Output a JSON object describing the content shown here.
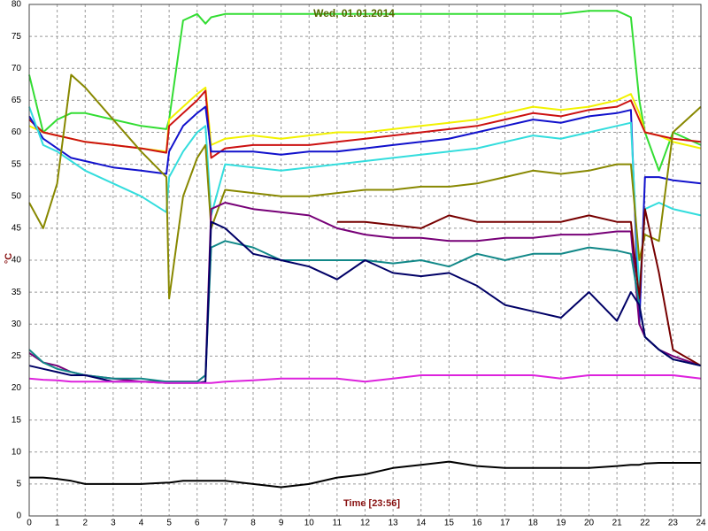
{
  "chart_data": {
    "type": "line",
    "title": "Wed, 01.01.2014",
    "xlabel": "Time [23:56]",
    "ylabel": "°C",
    "x": [
      0,
      0.5,
      1,
      1.5,
      2,
      3,
      4,
      4.9,
      5,
      5.5,
      6,
      6.3,
      6.5,
      7,
      8,
      9,
      10,
      11,
      12,
      13,
      14,
      15,
      16,
      17,
      18,
      19,
      20,
      21,
      21.5,
      21.8,
      22,
      22.5,
      23,
      24
    ],
    "xlim": [
      0,
      24
    ],
    "xticks": [
      0,
      1,
      2,
      3,
      4,
      5,
      6,
      7,
      8,
      9,
      10,
      11,
      12,
      13,
      14,
      15,
      16,
      17,
      18,
      19,
      20,
      21,
      22,
      23,
      24
    ],
    "ylim": [
      0,
      80
    ],
    "yticks": [
      0,
      5,
      10,
      15,
      20,
      25,
      30,
      35,
      40,
      45,
      50,
      55,
      60,
      65,
      70,
      75,
      80
    ],
    "grid": true,
    "series": [
      {
        "color": "#33dd33",
        "values": [
          69,
          60,
          62,
          63,
          63,
          62,
          61,
          60.5,
          62,
          77.5,
          78.5,
          77,
          78,
          78.5,
          78.5,
          78.5,
          78.5,
          78.5,
          78.5,
          78.5,
          78.5,
          78.5,
          78.5,
          78.5,
          78.5,
          78.5,
          79,
          79,
          78,
          65,
          60,
          54,
          60,
          58
        ]
      },
      {
        "color": "#f2f200",
        "values": [
          61,
          60,
          59.5,
          59,
          58.5,
          58,
          57.5,
          57,
          62,
          64,
          66,
          67,
          58,
          59,
          59.5,
          59,
          59.5,
          60,
          60,
          60.5,
          61,
          61.5,
          62,
          63,
          64,
          63.5,
          64,
          65,
          66,
          63,
          60,
          59.5,
          58.5,
          57.5
        ]
      },
      {
        "color": "#cc1111",
        "values": [
          62,
          60,
          59.5,
          59,
          58.5,
          58,
          57.5,
          56.8,
          61,
          63,
          65,
          66.5,
          56,
          57.5,
          58,
          58,
          58,
          58.5,
          59,
          59.5,
          60,
          60.5,
          61,
          62,
          63,
          62.5,
          63.5,
          64,
          65,
          62,
          60,
          59.5,
          59,
          58.5
        ]
      },
      {
        "color": "#1111cc",
        "values": [
          62.5,
          59,
          57.5,
          56,
          55.5,
          54.5,
          54,
          53.5,
          57,
          61,
          63,
          64,
          57,
          57,
          57,
          56.5,
          57,
          57,
          57.5,
          58,
          58.5,
          59,
          60,
          61,
          62,
          61.5,
          62.5,
          63,
          63.5,
          30,
          53,
          53,
          52.5,
          52
        ]
      },
      {
        "color": "#33dddd",
        "values": [
          64,
          58,
          57,
          55.5,
          54,
          52,
          50,
          47.5,
          53,
          57,
          60,
          61,
          47,
          55,
          54.5,
          54,
          54.5,
          55,
          55.5,
          56,
          56.5,
          57,
          57.5,
          58.5,
          59.5,
          59,
          60,
          61,
          61.5,
          35,
          48,
          49,
          48,
          47
        ]
      },
      {
        "color": "#888800",
        "values": [
          49,
          45,
          52,
          69,
          67,
          62,
          57,
          53,
          34,
          50,
          56,
          58,
          45,
          51,
          50.5,
          50,
          50,
          50.5,
          51,
          51,
          51.5,
          51.5,
          52,
          53,
          54,
          53.5,
          54,
          55,
          55,
          40,
          44,
          43,
          60,
          64
        ]
      },
      {
        "color": "#770077",
        "values": [
          25.5,
          24,
          23.5,
          22.5,
          22,
          21.5,
          21,
          21,
          21,
          21,
          21,
          22,
          48,
          49,
          48,
          47.5,
          47,
          45,
          44,
          43.5,
          43.5,
          43,
          43,
          43.5,
          43.5,
          44,
          44,
          44.5,
          44.5,
          30,
          28,
          26,
          25,
          23.5
        ]
      },
      {
        "color": "#770000",
        "values": [
          null,
          null,
          null,
          null,
          null,
          null,
          null,
          null,
          null,
          null,
          null,
          null,
          null,
          null,
          null,
          null,
          null,
          46,
          46,
          45.5,
          45,
          47,
          46,
          46,
          46,
          46,
          47,
          46,
          46,
          34,
          48,
          38,
          26,
          23.5
        ]
      },
      {
        "color": "#118888",
        "values": [
          26,
          24,
          23,
          22.5,
          22,
          21.5,
          21.5,
          21,
          21,
          21,
          21,
          22,
          42,
          43,
          42,
          40,
          40,
          40,
          40,
          39.5,
          40,
          39,
          41,
          40,
          41,
          41,
          42,
          41.5,
          41,
          33,
          28,
          26,
          24.5,
          23.5
        ]
      },
      {
        "color": "#000066",
        "values": [
          23.5,
          23,
          22.5,
          22,
          22,
          21,
          21,
          20.8,
          20.8,
          20.8,
          20.8,
          21,
          46,
          45,
          41,
          40,
          39,
          37,
          40,
          38,
          37.5,
          38,
          36,
          33,
          32,
          31,
          35,
          30.5,
          35,
          33,
          28,
          26,
          24.5,
          23.5
        ]
      },
      {
        "color": "#dd22dd",
        "values": [
          21.5,
          21.3,
          21.2,
          21,
          21,
          21,
          21,
          20.8,
          20.8,
          20.8,
          20.8,
          20.8,
          20.8,
          21,
          21.2,
          21.5,
          21.5,
          21.5,
          21,
          21.5,
          22,
          22,
          22,
          22,
          22,
          21.5,
          22,
          22,
          22,
          22,
          22,
          22,
          22,
          21.5
        ]
      },
      {
        "color": "#000000",
        "values": [
          6,
          6,
          5.8,
          5.5,
          5,
          5,
          5,
          5.2,
          5.2,
          5.5,
          5.5,
          5.5,
          5.5,
          5.5,
          5,
          4.5,
          5,
          6,
          6.5,
          7.5,
          8,
          8.5,
          7.8,
          7.5,
          7.5,
          7.5,
          7.5,
          7.8,
          8,
          8,
          8.2,
          8.3,
          8.3,
          8.3
        ]
      }
    ]
  }
}
